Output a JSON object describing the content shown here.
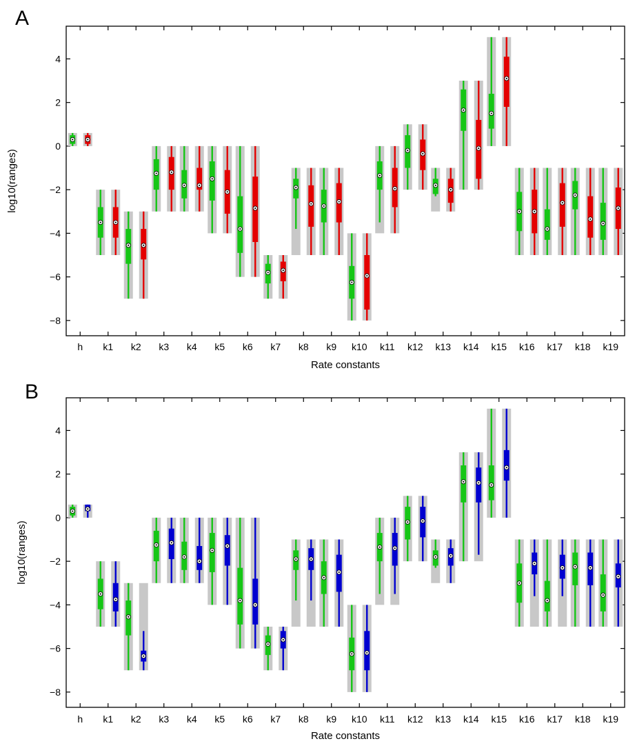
{
  "colors": {
    "background_range": "#c8c8c8",
    "green": "#16c616",
    "red": "#e40000",
    "blue": "#0000d0"
  },
  "chart_data": [
    {
      "panel_label": "A",
      "type": "boxplot",
      "xlabel": "Rate constants",
      "ylabel": "log10(ranges)",
      "ylim": [
        -8.7,
        5.5
      ],
      "yticks": [
        4,
        2,
        0,
        -2,
        -4,
        -6,
        -8
      ],
      "ytick_labels": [
        "4",
        "2",
        "0",
        "−2",
        "−4",
        "−6",
        "−8"
      ],
      "categories": [
        "h",
        "k1",
        "k2",
        "k3",
        "k4",
        "k5",
        "k6",
        "k7",
        "k8",
        "k9",
        "k10",
        "k11",
        "k12",
        "k13",
        "k14",
        "k15",
        "k16",
        "k17",
        "k18",
        "k19"
      ],
      "prior_ranges": [
        [
          0,
          0.6
        ],
        [
          -5,
          -2
        ],
        [
          -7,
          -3
        ],
        [
          -3,
          0
        ],
        [
          -3,
          0
        ],
        [
          -4,
          0
        ],
        [
          -6,
          0
        ],
        [
          -7,
          -5
        ],
        [
          -5,
          -1
        ],
        [
          -5,
          -1
        ],
        [
          -8,
          -4
        ],
        [
          -4,
          0
        ],
        [
          -2,
          1
        ],
        [
          -3,
          -1
        ],
        [
          -2,
          3
        ],
        [
          0,
          5
        ],
        [
          -5,
          -1
        ],
        [
          -5,
          -1
        ],
        [
          -5,
          -1
        ],
        [
          -5,
          -1
        ]
      ],
      "series": [
        {
          "color": "green",
          "whisker": [
            [
              0,
              0.6
            ],
            [
              -5,
              -2
            ],
            [
              -7,
              -3
            ],
            [
              -3,
              0
            ],
            [
              -3,
              0
            ],
            [
              -4,
              0
            ],
            [
              -6,
              0
            ],
            [
              -7,
              -5
            ],
            [
              -3.8,
              -1
            ],
            [
              -5,
              -1
            ],
            [
              -8,
              -4
            ],
            [
              -3.5,
              0
            ],
            [
              -2,
              1
            ],
            [
              -2.3,
              -1
            ],
            [
              -2,
              3
            ],
            [
              0,
              5
            ],
            [
              -5,
              -1
            ],
            [
              -5,
              -1
            ],
            [
              -5,
              -1
            ],
            [
              -5,
              -1
            ]
          ],
          "box": [
            [
              0.1,
              0.5
            ],
            [
              -4.2,
              -2.8
            ],
            [
              -5.4,
              -3.8
            ],
            [
              -2.0,
              -0.6
            ],
            [
              -2.4,
              -1.1
            ],
            [
              -2.5,
              -0.7
            ],
            [
              -4.9,
              -2.3
            ],
            [
              -6.3,
              -5.4
            ],
            [
              -2.4,
              -1.5
            ],
            [
              -3.5,
              -2.0
            ],
            [
              -7.0,
              -5.5
            ],
            [
              -2.0,
              -0.7
            ],
            [
              -1.0,
              0.5
            ],
            [
              -2.2,
              -1.5
            ],
            [
              0.7,
              2.6
            ],
            [
              0.8,
              2.4
            ],
            [
              -3.9,
              -2.1
            ],
            [
              -4.3,
              -2.9
            ],
            [
              -2.9,
              -1.6
            ],
            [
              -4.3,
              -2.6
            ]
          ],
          "median": [
            0.3,
            -3.5,
            -4.55,
            -1.25,
            -1.8,
            -1.5,
            -3.8,
            -5.8,
            -1.9,
            -2.75,
            -6.25,
            -1.35,
            -0.2,
            -1.8,
            1.65,
            1.5,
            -3.0,
            -3.8,
            -2.25,
            -3.55
          ]
        },
        {
          "color": "red",
          "whisker": [
            [
              0,
              0.6
            ],
            [
              -5,
              -2
            ],
            [
              -7,
              -3
            ],
            [
              -3,
              0
            ],
            [
              -3,
              0
            ],
            [
              -4,
              0
            ],
            [
              -6,
              0
            ],
            [
              -7,
              -5
            ],
            [
              -5,
              -1
            ],
            [
              -5,
              -1
            ],
            [
              -8,
              -4
            ],
            [
              -4,
              0
            ],
            [
              -2,
              1
            ],
            [
              -3,
              -1
            ],
            [
              -2,
              3
            ],
            [
              0,
              5
            ],
            [
              -5,
              -1
            ],
            [
              -5,
              -1
            ],
            [
              -5,
              -1
            ],
            [
              -5,
              -1
            ]
          ],
          "box": [
            [
              0.1,
              0.5
            ],
            [
              -4.2,
              -2.8
            ],
            [
              -5.2,
              -3.8
            ],
            [
              -2.0,
              -0.5
            ],
            [
              -2.0,
              -1.0
            ],
            [
              -3.1,
              -1.1
            ],
            [
              -4.4,
              -1.4
            ],
            [
              -6.2,
              -5.3
            ],
            [
              -3.7,
              -1.8
            ],
            [
              -3.5,
              -1.7
            ],
            [
              -7.5,
              -5.0
            ],
            [
              -2.8,
              -1.0
            ],
            [
              -1.1,
              0.3
            ],
            [
              -2.6,
              -1.5
            ],
            [
              -1.5,
              1.2
            ],
            [
              1.8,
              4.1
            ],
            [
              -4.0,
              -2.0
            ],
            [
              -3.7,
              -1.7
            ],
            [
              -4.2,
              -2.3
            ],
            [
              -3.8,
              -1.9
            ]
          ],
          "median": [
            0.3,
            -3.5,
            -4.55,
            -1.2,
            -1.8,
            -2.1,
            -2.85,
            -5.7,
            -2.65,
            -2.55,
            -5.95,
            -1.95,
            -0.35,
            -2.0,
            -0.1,
            3.1,
            -3.0,
            -2.6,
            -3.35,
            -2.85
          ]
        }
      ]
    },
    {
      "panel_label": "B",
      "type": "boxplot",
      "xlabel": "Rate constants",
      "ylabel": "log10(ranges)",
      "ylim": [
        -8.7,
        5.5
      ],
      "yticks": [
        4,
        2,
        0,
        -2,
        -4,
        -6,
        -8
      ],
      "ytick_labels": [
        "4",
        "2",
        "0",
        "−2",
        "−4",
        "−6",
        "−8"
      ],
      "categories": [
        "h",
        "k1",
        "k2",
        "k3",
        "k4",
        "k5",
        "k6",
        "k7",
        "k8",
        "k9",
        "k10",
        "k11",
        "k12",
        "k13",
        "k14",
        "k15",
        "k16",
        "k17",
        "k18",
        "k19"
      ],
      "prior_ranges": [
        [
          0,
          0.6
        ],
        [
          -5,
          -2
        ],
        [
          -7,
          -3
        ],
        [
          -3,
          0
        ],
        [
          -3,
          0
        ],
        [
          -4,
          0
        ],
        [
          -6,
          0
        ],
        [
          -7,
          -5
        ],
        [
          -5,
          -1
        ],
        [
          -5,
          -1
        ],
        [
          -8,
          -4
        ],
        [
          -4,
          0
        ],
        [
          -2,
          1
        ],
        [
          -3,
          -1
        ],
        [
          -2,
          3
        ],
        [
          0,
          5
        ],
        [
          -5,
          -1
        ],
        [
          -5,
          -1
        ],
        [
          -5,
          -1
        ],
        [
          -5,
          -1
        ]
      ],
      "series": [
        {
          "color": "green",
          "whisker": [
            [
              0,
              0.6
            ],
            [
              -5,
              -2
            ],
            [
              -7,
              -3
            ],
            [
              -3,
              0
            ],
            [
              -3,
              0
            ],
            [
              -4,
              0
            ],
            [
              -6,
              0
            ],
            [
              -7,
              -5
            ],
            [
              -3.8,
              -1
            ],
            [
              -5,
              -1
            ],
            [
              -8,
              -4
            ],
            [
              -3.5,
              0
            ],
            [
              -2,
              1
            ],
            [
              -2.3,
              -1
            ],
            [
              -2,
              3
            ],
            [
              0,
              5
            ],
            [
              -5,
              -1
            ],
            [
              -5,
              -1
            ],
            [
              -5,
              -1
            ],
            [
              -5,
              -1
            ]
          ],
          "box": [
            [
              0.1,
              0.5
            ],
            [
              -4.2,
              -2.8
            ],
            [
              -5.4,
              -3.8
            ],
            [
              -2.0,
              -0.6
            ],
            [
              -2.4,
              -1.1
            ],
            [
              -2.5,
              -0.7
            ],
            [
              -4.9,
              -2.3
            ],
            [
              -6.3,
              -5.4
            ],
            [
              -2.4,
              -1.5
            ],
            [
              -3.5,
              -2.0
            ],
            [
              -7.0,
              -5.5
            ],
            [
              -2.0,
              -0.7
            ],
            [
              -1.0,
              0.5
            ],
            [
              -2.2,
              -1.5
            ],
            [
              0.7,
              2.4
            ],
            [
              0.8,
              2.4
            ],
            [
              -3.9,
              -2.1
            ],
            [
              -4.3,
              -2.9
            ],
            [
              -3.1,
              -1.6
            ],
            [
              -4.3,
              -2.6
            ]
          ],
          "median": [
            0.3,
            -3.5,
            -4.55,
            -1.25,
            -1.8,
            -1.5,
            -3.8,
            -5.8,
            -1.9,
            -2.75,
            -6.25,
            -1.35,
            -0.2,
            -1.8,
            1.65,
            1.5,
            -3.0,
            -3.8,
            -2.25,
            -3.55
          ]
        },
        {
          "color": "blue",
          "whisker": [
            [
              0,
              0.6
            ],
            [
              -5,
              -2
            ],
            [
              -7,
              -5.2
            ],
            [
              -3,
              0
            ],
            [
              -3,
              0
            ],
            [
              -4,
              0
            ],
            [
              -6,
              0
            ],
            [
              -7,
              -5
            ],
            [
              -3.8,
              -1
            ],
            [
              -5,
              -1
            ],
            [
              -8,
              -4
            ],
            [
              -3.5,
              0
            ],
            [
              -2,
              1
            ],
            [
              -3,
              -1
            ],
            [
              -1.7,
              3
            ],
            [
              0,
              5
            ],
            [
              -3.6,
              -1
            ],
            [
              -3.6,
              -1
            ],
            [
              -5,
              -1
            ],
            [
              -5,
              -1
            ]
          ],
          "box": [
            [
              0.3,
              0.6
            ],
            [
              -4.3,
              -3.0
            ],
            [
              -6.6,
              -6.1
            ],
            [
              -1.9,
              -0.5
            ],
            [
              -2.4,
              -1.3
            ],
            [
              -2.2,
              -0.8
            ],
            [
              -4.9,
              -2.8
            ],
            [
              -6.0,
              -5.2
            ],
            [
              -2.4,
              -1.4
            ],
            [
              -3.4,
              -1.7
            ],
            [
              -7.0,
              -5.2
            ],
            [
              -2.2,
              -0.7
            ],
            [
              -0.9,
              0.5
            ],
            [
              -2.2,
              -1.4
            ],
            [
              0.7,
              2.3
            ],
            [
              1.7,
              3.1
            ],
            [
              -2.6,
              -1.6
            ],
            [
              -2.8,
              -1.7
            ],
            [
              -3.1,
              -1.6
            ],
            [
              -3.2,
              -2.1
            ]
          ],
          "median": [
            0.4,
            -3.75,
            -6.35,
            -1.15,
            -2.0,
            -1.3,
            -4.0,
            -5.6,
            -1.9,
            -2.5,
            -6.2,
            -1.4,
            -0.15,
            -1.75,
            1.6,
            2.3,
            -2.1,
            -2.3,
            -2.3,
            -2.7
          ]
        }
      ]
    }
  ]
}
